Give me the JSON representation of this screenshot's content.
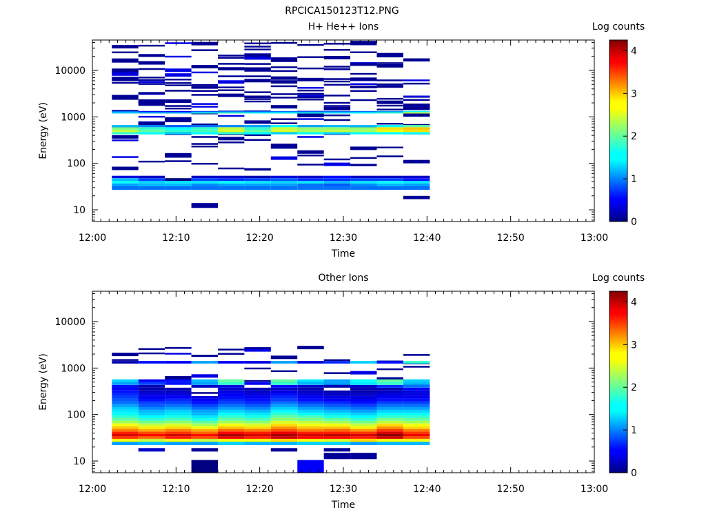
{
  "figure_title": "RPCICA150123T12.PNG",
  "chart_data": [
    {
      "type": "heatmap",
      "title": "H+ He++ Ions",
      "xlabel": "Time",
      "ylabel": "Energy (eV)",
      "x_ticks": [
        "12:00",
        "12:10",
        "12:20",
        "12:30",
        "12:40",
        "12:50",
        "13:00"
      ],
      "y_ticks": [
        "10",
        "100",
        "1000",
        "10000"
      ],
      "y_scale": "log",
      "ylim": [
        5.6,
        45000
      ],
      "colorbar": {
        "label": "Log counts",
        "range": [
          0,
          4.25
        ],
        "ticks": [
          "0",
          "1",
          "2",
          "3",
          "4"
        ],
        "colormap": "jet"
      },
      "time_columns": [
        {
          "start": "12:02:20",
          "end": "12:05:30"
        },
        {
          "start": "12:05:30",
          "end": "12:08:40"
        },
        {
          "start": "12:08:40",
          "end": "12:11:50"
        },
        {
          "start": "12:11:50",
          "end": "12:15:00"
        },
        {
          "start": "12:15:00",
          "end": "12:18:10"
        },
        {
          "start": "12:18:10",
          "end": "12:21:20"
        },
        {
          "start": "12:21:20",
          "end": "12:24:30"
        },
        {
          "start": "12:24:30",
          "end": "12:27:40"
        },
        {
          "start": "12:27:40",
          "end": "12:30:50"
        },
        {
          "start": "12:30:50",
          "end": "12:34:00"
        },
        {
          "start": "12:34:00",
          "end": "12:37:10"
        },
        {
          "start": "12:37:10",
          "end": "12:40:20"
        }
      ],
      "bands": [
        {
          "e_low": 27,
          "e_high": 32,
          "values": [
            1.0,
            1.0,
            1.0,
            1.0,
            1.0,
            1.0,
            1.0,
            1.0,
            1.0,
            1.0,
            1.0,
            1.0
          ]
        },
        {
          "e_low": 32,
          "e_high": 37,
          "values": [
            1.2,
            1.3,
            1.3,
            1.1,
            1.2,
            1.2,
            1.2,
            1.0,
            0.9,
            1.1,
            1.3,
            1.2
          ]
        },
        {
          "e_low": 37,
          "e_high": 42,
          "values": [
            1.6,
            1.4,
            1.5,
            1.5,
            1.6,
            1.5,
            1.4,
            1.5,
            1.3,
            1.5,
            1.6,
            1.5
          ]
        },
        {
          "e_low": 42,
          "e_high": 48,
          "values": [
            1.3,
            0.8,
            0.0,
            0.8,
            0.7,
            0.8,
            0.9,
            0.7,
            0.7,
            0.8,
            0.8,
            0.6
          ]
        },
        {
          "e_low": 48,
          "e_high": 54,
          "values": [
            0.4,
            0.3,
            null,
            0.3,
            0.3,
            0.2,
            0.4,
            0.3,
            0.6,
            0.3,
            0.3,
            0.3
          ]
        },
        {
          "e_low": 420,
          "e_high": 470,
          "values": [
            1.8,
            1.6,
            1.4,
            1.6,
            1.8,
            1.6,
            1.4,
            1.6,
            1.4,
            1.6,
            1.6,
            1.6
          ]
        },
        {
          "e_low": 470,
          "e_high": 530,
          "values": [
            2.4,
            2.0,
            1.8,
            1.9,
            2.5,
            2.0,
            2.5,
            2.3,
            2.4,
            2.3,
            2.6,
            2.8
          ]
        },
        {
          "e_low": 530,
          "e_high": 600,
          "values": [
            2.1,
            1.8,
            1.6,
            1.8,
            2.4,
            1.8,
            2.4,
            2.2,
            2.2,
            2.2,
            2.8,
            2.9
          ]
        },
        {
          "e_low": 600,
          "e_high": 670,
          "values": [
            1.3,
            1.1,
            0.9,
            1.0,
            1.1,
            1.2,
            1.6,
            1.2,
            1.3,
            1.3,
            1.6,
            2.0
          ]
        },
        {
          "e_low": 1180,
          "e_high": 1260,
          "values": [
            1.4,
            1.3,
            1.3,
            1.7,
            1.8,
            1.6,
            1.6,
            1.7,
            1.5,
            1.6,
            1.8,
            2.4
          ]
        },
        {
          "e_low": 1260,
          "e_high": 1340,
          "values": [
            1.0,
            0.6,
            0.5,
            0.9,
            1.0,
            0.9,
            1.0,
            0.9,
            1.0,
            1.0,
            1.2,
            1.6
          ]
        },
        {
          "e_low": 11,
          "e_high": 14,
          "values": [
            null,
            null,
            null,
            0.1,
            null,
            null,
            null,
            null,
            null,
            null,
            null,
            null
          ]
        },
        {
          "e_low": 17,
          "e_high": 20,
          "values": [
            null,
            null,
            null,
            null,
            null,
            null,
            null,
            null,
            null,
            null,
            null,
            0.1
          ]
        }
      ],
      "sparse_counts": "scattered single-count (log value 0) samples across 60–40000 eV in every column"
    },
    {
      "type": "heatmap",
      "title": "Other Ions",
      "xlabel": "Time",
      "ylabel": "Energy (eV)",
      "x_ticks": [
        "12:00",
        "12:10",
        "12:20",
        "12:30",
        "12:40",
        "12:50",
        "13:00"
      ],
      "y_ticks": [
        "10",
        "100",
        "1000",
        "10000"
      ],
      "y_scale": "log",
      "ylim": [
        5.6,
        45000
      ],
      "colorbar": {
        "label": "Log counts",
        "range": [
          0,
          4.25
        ],
        "ticks": [
          "0",
          "1",
          "2",
          "3",
          "4"
        ],
        "colormap": "jet"
      },
      "time_columns": [
        {
          "start": "12:02:20",
          "end": "12:05:30"
        },
        {
          "start": "12:05:30",
          "end": "12:08:40"
        },
        {
          "start": "12:08:40",
          "end": "12:11:50"
        },
        {
          "start": "12:11:50",
          "end": "12:15:00"
        },
        {
          "start": "12:15:00",
          "end": "12:18:10"
        },
        {
          "start": "12:18:10",
          "end": "12:21:20"
        },
        {
          "start": "12:21:20",
          "end": "12:24:30"
        },
        {
          "start": "12:24:30",
          "end": "12:27:40"
        },
        {
          "start": "12:27:40",
          "end": "12:30:50"
        },
        {
          "start": "12:30:50",
          "end": "12:34:00"
        },
        {
          "start": "12:34:00",
          "end": "12:37:10"
        },
        {
          "start": "12:37:10",
          "end": "12:40:20"
        }
      ],
      "bands": [
        {
          "e_low": 22,
          "e_high": 26,
          "values": [
            1.2,
            1.3,
            1.2,
            1.2,
            1.4,
            1.3,
            1.3,
            1.4,
            1.4,
            1.2,
            1.3,
            1.3
          ]
        },
        {
          "e_low": 26,
          "e_high": 30,
          "values": [
            2.6,
            2.4,
            2.6,
            2.4,
            2.6,
            2.6,
            2.8,
            2.6,
            2.5,
            2.8,
            2.6,
            2.6
          ]
        },
        {
          "e_low": 30,
          "e_high": 34,
          "values": [
            3.5,
            3.3,
            3.6,
            3.4,
            3.8,
            3.6,
            3.9,
            3.7,
            3.7,
            3.6,
            3.9,
            3.4
          ]
        },
        {
          "e_low": 34,
          "e_high": 38,
          "values": [
            3.9,
            3.7,
            3.9,
            3.7,
            4.1,
            3.9,
            4.1,
            3.9,
            4.0,
            3.9,
            4.2,
            3.8
          ]
        },
        {
          "e_low": 38,
          "e_high": 43,
          "values": [
            3.6,
            3.4,
            3.5,
            3.3,
            3.7,
            3.6,
            3.8,
            3.6,
            3.6,
            3.5,
            3.9,
            3.5
          ]
        },
        {
          "e_low": 43,
          "e_high": 49,
          "values": [
            3.2,
            3.0,
            3.2,
            3.0,
            3.3,
            3.2,
            3.4,
            3.2,
            3.3,
            3.1,
            3.5,
            3.2
          ]
        },
        {
          "e_low": 49,
          "e_high": 56,
          "values": [
            2.9,
            2.7,
            2.8,
            2.6,
            2.9,
            2.8,
            3.1,
            2.9,
            2.9,
            2.7,
            3.1,
            2.8
          ]
        },
        {
          "e_low": 56,
          "e_high": 64,
          "values": [
            2.6,
            2.4,
            2.5,
            2.3,
            2.6,
            2.5,
            2.8,
            2.6,
            2.6,
            2.4,
            2.8,
            2.6
          ]
        },
        {
          "e_low": 64,
          "e_high": 73,
          "values": [
            2.3,
            2.1,
            2.2,
            2.0,
            2.3,
            2.2,
            2.5,
            2.4,
            2.3,
            2.1,
            2.4,
            2.3
          ]
        },
        {
          "e_low": 73,
          "e_high": 84,
          "values": [
            2.0,
            1.8,
            1.9,
            1.7,
            2.0,
            1.9,
            2.2,
            2.1,
            2.0,
            1.8,
            2.1,
            2.0
          ]
        },
        {
          "e_low": 84,
          "e_high": 96,
          "values": [
            1.8,
            1.6,
            1.7,
            1.5,
            1.8,
            1.7,
            2.0,
            1.9,
            1.7,
            1.6,
            1.8,
            1.8
          ]
        },
        {
          "e_low": 96,
          "e_high": 110,
          "values": [
            1.6,
            1.4,
            1.5,
            1.3,
            1.6,
            1.5,
            1.8,
            1.6,
            1.5,
            1.4,
            1.6,
            1.6
          ]
        },
        {
          "e_low": 110,
          "e_high": 126,
          "values": [
            1.5,
            1.3,
            1.4,
            1.2,
            1.4,
            1.3,
            1.6,
            1.4,
            1.3,
            1.2,
            1.4,
            1.4
          ]
        },
        {
          "e_low": 126,
          "e_high": 145,
          "values": [
            1.4,
            1.1,
            1.2,
            1.0,
            1.2,
            1.1,
            1.4,
            1.2,
            1.1,
            1.0,
            1.2,
            1.2
          ]
        },
        {
          "e_low": 145,
          "e_high": 166,
          "values": [
            1.2,
            0.9,
            1.0,
            0.8,
            1.0,
            0.9,
            1.2,
            1.0,
            0.9,
            0.8,
            1.0,
            1.0
          ]
        },
        {
          "e_low": 166,
          "e_high": 190,
          "values": [
            1.0,
            0.8,
            0.8,
            0.6,
            0.8,
            0.7,
            1.0,
            0.8,
            0.7,
            0.6,
            0.8,
            0.8
          ]
        },
        {
          "e_low": 190,
          "e_high": 218,
          "values": [
            0.9,
            0.6,
            0.7,
            0.5,
            0.7,
            0.6,
            0.8,
            0.6,
            0.5,
            0.5,
            0.6,
            0.6
          ]
        },
        {
          "e_low": 218,
          "e_high": 250,
          "values": [
            0.8,
            0.5,
            0.5,
            0.4,
            0.6,
            0.5,
            0.7,
            0.5,
            0.4,
            0.4,
            0.5,
            0.5
          ]
        },
        {
          "e_low": 250,
          "e_high": 287,
          "values": [
            0.7,
            0.4,
            0.4,
            null,
            0.5,
            0.4,
            0.6,
            0.4,
            0.3,
            0.3,
            0.4,
            0.4
          ]
        },
        {
          "e_low": 287,
          "e_high": 330,
          "values": [
            0.6,
            0.3,
            0.3,
            null,
            0.4,
            0.3,
            0.4,
            0.3,
            0.2,
            0.2,
            0.3,
            0.4
          ]
        },
        {
          "e_low": 330,
          "e_high": 378,
          "values": [
            0.5,
            0.2,
            0.2,
            null,
            0.3,
            0.2,
            0.3,
            0.2,
            null,
            0.2,
            0.2,
            0.5
          ]
        },
        {
          "e_low": 378,
          "e_high": 434,
          "values": [
            0.6,
            0.2,
            null,
            0.3,
            0.4,
            null,
            0.5,
            0.3,
            0.2,
            0.3,
            0.7,
            1.0
          ]
        },
        {
          "e_low": 434,
          "e_high": 498,
          "values": [
            1.2,
            0.8,
            0.6,
            1.2,
            1.8,
            0.5,
            1.8,
            1.3,
            1.2,
            1.5,
            1.8,
            1.3
          ]
        },
        {
          "e_low": 498,
          "e_high": 571,
          "values": [
            1.4,
            0.5,
            0.6,
            1.3,
            2.0,
            null,
            2.0,
            1.5,
            1.2,
            1.6,
            2.0,
            1.4
          ]
        },
        {
          "e_low": 1250,
          "e_high": 1420,
          "values": [
            0.2,
            0.6,
            0.5,
            1.2,
            0.5,
            0.4,
            1.2,
            0.4,
            0.7,
            1.4,
            0.6,
            1.8
          ]
        },
        {
          "e_low": 16,
          "e_high": 19,
          "values": [
            null,
            0.3,
            null,
            0.1,
            null,
            null,
            0.1,
            null,
            0.1,
            null,
            null,
            null
          ]
        },
        {
          "e_low": 11,
          "e_high": 15,
          "values": [
            null,
            null,
            null,
            null,
            null,
            null,
            null,
            null,
            0.1,
            0.1,
            null,
            null
          ]
        },
        {
          "e_low": 5.6,
          "e_high": 10.5,
          "values": [
            null,
            null,
            null,
            0.0,
            null,
            null,
            null,
            0.5,
            null,
            null,
            null,
            null
          ]
        }
      ],
      "sparse_counts": "scattered single-count (log value 0) samples across 200–3000 eV"
    }
  ]
}
